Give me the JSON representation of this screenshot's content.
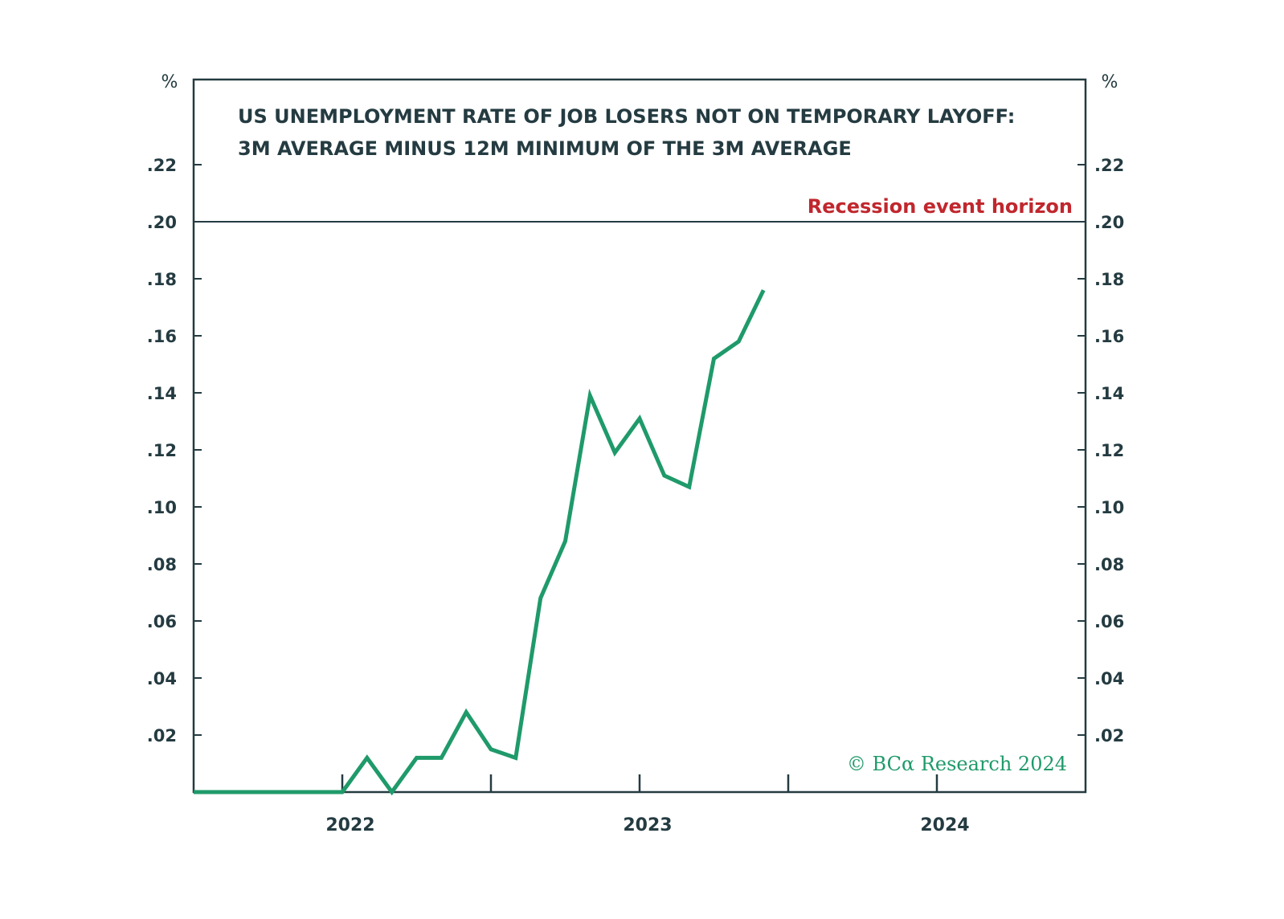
{
  "chart_data": {
    "type": "line",
    "title_lines": [
      "US UNEMPLOYMENT RATE OF JOB LOSERS NOT ON TEMPORARY LAYOFF:",
      "3M AVERAGE MINUS 12M MINIMUM OF THE 3M AVERAGE"
    ],
    "y_unit_left": "%",
    "y_unit_right": "%",
    "ylim": [
      0,
      0.25
    ],
    "yticks": [
      0.02,
      0.04,
      0.06,
      0.08,
      0.1,
      0.12,
      0.14,
      0.16,
      0.18,
      0.2,
      0.22
    ],
    "ytick_labels": [
      ".02",
      ".04",
      ".06",
      ".08",
      ".10",
      ".12",
      ".14",
      ".16",
      ".18",
      ".20",
      ".22"
    ],
    "xlim": [
      "2021-07",
      "2024-07"
    ],
    "xticks": [
      "2022-01",
      "2022-07",
      "2023-01",
      "2023-07",
      "2024-01"
    ],
    "xtick_labels": [
      {
        "at": "2022-01",
        "label": "2022"
      },
      {
        "at": "2023-01",
        "label": "2023"
      },
      {
        "at": "2024-01",
        "label": "2024"
      }
    ],
    "threshold": {
      "value": 0.2,
      "label": "Recession event horizon",
      "color": "#c0272d"
    },
    "series": [
      {
        "color": "#1f9a6a",
        "x": [
          "2021-07",
          "2021-08",
          "2021-09",
          "2021-10",
          "2021-11",
          "2021-12",
          "2022-01",
          "2022-02",
          "2022-03",
          "2022-04",
          "2022-05",
          "2022-06",
          "2022-07",
          "2022-08",
          "2022-09",
          "2022-10",
          "2022-11",
          "2022-12",
          "2023-01",
          "2023-02",
          "2023-03",
          "2023-04",
          "2023-05",
          "2023-06",
          "2023-07"
        ],
        "values": [
          0,
          0,
          0,
          0,
          0,
          0,
          0,
          0.012,
          0,
          0.012,
          0.012,
          0.028,
          0.015,
          0.012,
          0.068,
          0.088,
          0.139,
          0.119,
          0.131,
          0.111,
          0.107,
          0.152,
          0.158,
          0.176,
          null
        ]
      }
    ],
    "credit": "© BCα Research 2024",
    "credit_color": "#1f9a6a",
    "grid": false
  }
}
